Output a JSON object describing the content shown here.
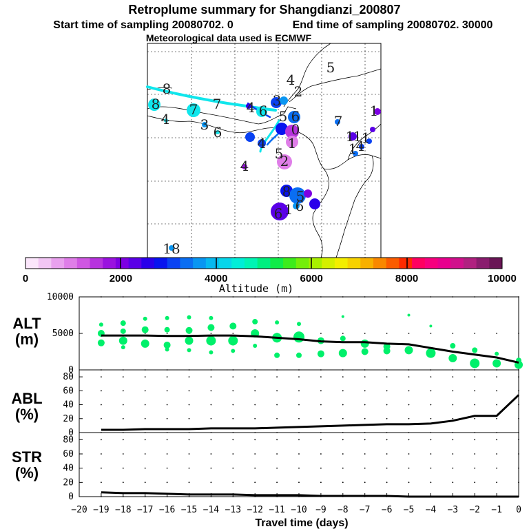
{
  "title": "Retroplume summary for Shangdianzi_200807",
  "subtitle_start": "Start time of sampling 20080702.    0",
  "subtitle_end": "End time of sampling 20080702. 30000",
  "met_line": "Meteorological data used is ECMWF",
  "colorbar": {
    "label": "Altitude (m)",
    "ticks": [
      "0",
      "2000",
      "4000",
      "6000",
      "8000",
      "10000"
    ],
    "colors": [
      "#fbe6fb",
      "#f2c6f4",
      "#e9a1ee",
      "#df7ee8",
      "#cf57e2",
      "#b733de",
      "#9a12df",
      "#7d00e2",
      "#5a00e7",
      "#2a00ea",
      "#0814ef",
      "#0a42f2",
      "#0a6ef2",
      "#0896f2",
      "#06b9f0",
      "#06d6ea",
      "#00eed8",
      "#00f5b4",
      "#00f080",
      "#10ec48",
      "#3cec1c",
      "#74ee0a",
      "#a8f000",
      "#d4f000",
      "#f3ee00",
      "#f7d200",
      "#f8b000",
      "#f98800",
      "#fb5c00",
      "#ff2a00",
      "#ff0060",
      "#f7007e",
      "#e8008e",
      "#d0108c",
      "#b02080",
      "#8a1c6e",
      "#6a1656"
    ]
  },
  "map_labels": [
    {
      "t": "5",
      "c": "#222"
    },
    {
      "t": "4",
      "c": "#222"
    },
    {
      "t": "2",
      "c": "#222"
    },
    {
      "t": "8",
      "c": "#222"
    },
    {
      "t": "8",
      "c": "#222"
    },
    {
      "t": "7",
      "c": "#222"
    },
    {
      "t": "7",
      "c": "#222"
    },
    {
      "t": "4",
      "c": "#222"
    },
    {
      "t": "3",
      "c": "#222"
    },
    {
      "t": "6",
      "c": "#222"
    },
    {
      "t": "4",
      "c": "#222"
    },
    {
      "t": "6",
      "c": "#222"
    },
    {
      "t": "3",
      "c": "#222"
    },
    {
      "t": "5",
      "c": "#222"
    },
    {
      "t": "6",
      "c": "#222"
    },
    {
      "t": "0",
      "c": "#222"
    },
    {
      "t": "1",
      "c": "#222"
    },
    {
      "t": "2",
      "c": "#222"
    },
    {
      "t": "4",
      "c": "#222"
    },
    {
      "t": "5",
      "c": "#222"
    },
    {
      "t": "1",
      "c": "#222"
    },
    {
      "t": "1",
      "c": "#222"
    },
    {
      "t": "7",
      "c": "#222"
    },
    {
      "t": "1",
      "c": "#222"
    },
    {
      "t": "1",
      "c": "#222"
    },
    {
      "t": "1",
      "c": "#222"
    },
    {
      "t": "4",
      "c": "#222"
    },
    {
      "t": "8",
      "c": "#222"
    },
    {
      "t": "5",
      "c": "#222"
    },
    {
      "t": "6",
      "c": "#222"
    },
    {
      "t": "1",
      "c": "#222"
    },
    {
      "t": "6",
      "c": "#222"
    },
    {
      "t": "4",
      "c": "#222"
    },
    {
      "t": "18",
      "c": "#222"
    }
  ],
  "panels": {
    "alt": {
      "label1": "ALT",
      "label2": "(m)"
    },
    "abl": {
      "label1": "ABL",
      "label2": "(%)"
    },
    "str": {
      "label1": "STR",
      "label2": "(%)"
    }
  },
  "xaxis_label": "Travel time (days)",
  "chart_data": [
    {
      "type": "line",
      "name": "ALT",
      "x": [
        -19,
        -18,
        -17,
        -16,
        -15,
        -14,
        -13,
        -12,
        -11,
        -10,
        -9,
        -8,
        -7,
        -6,
        -5,
        -4,
        -3,
        -2,
        -1,
        0
      ],
      "values": [
        4700,
        4700,
        4700,
        4650,
        4650,
        4700,
        4700,
        4600,
        4400,
        4200,
        3900,
        3800,
        3800,
        3600,
        3500,
        3000,
        2500,
        2100,
        1700,
        1000
      ],
      "ylim": [
        0,
        10000
      ],
      "yticks": [
        "0",
        "5000",
        "10000"
      ],
      "scatter": [
        {
          "x": -19,
          "y": 6200,
          "r": 3
        },
        {
          "x": -19,
          "y": 5000,
          "r": 5
        },
        {
          "x": -19,
          "y": 3700,
          "r": 5
        },
        {
          "x": -18,
          "y": 6400,
          "r": 4
        },
        {
          "x": -18,
          "y": 5300,
          "r": 4
        },
        {
          "x": -18,
          "y": 4000,
          "r": 6
        },
        {
          "x": -18,
          "y": 3100,
          "r": 3
        },
        {
          "x": -17,
          "y": 7000,
          "r": 3
        },
        {
          "x": -17,
          "y": 5500,
          "r": 5
        },
        {
          "x": -17,
          "y": 3600,
          "r": 6
        },
        {
          "x": -16,
          "y": 7100,
          "r": 3
        },
        {
          "x": -16,
          "y": 5500,
          "r": 4
        },
        {
          "x": -16,
          "y": 3400,
          "r": 5
        },
        {
          "x": -16,
          "y": 2800,
          "r": 3
        },
        {
          "x": -15,
          "y": 7200,
          "r": 3
        },
        {
          "x": -15,
          "y": 5400,
          "r": 5
        },
        {
          "x": -15,
          "y": 4000,
          "r": 6
        },
        {
          "x": -15,
          "y": 2700,
          "r": 3
        },
        {
          "x": -14,
          "y": 7100,
          "r": 3
        },
        {
          "x": -14,
          "y": 5800,
          "r": 5
        },
        {
          "x": -14,
          "y": 4000,
          "r": 7
        },
        {
          "x": -14,
          "y": 2400,
          "r": 3
        },
        {
          "x": -13,
          "y": 6000,
          "r": 5
        },
        {
          "x": -13,
          "y": 4000,
          "r": 7
        },
        {
          "x": -13,
          "y": 2600,
          "r": 3
        },
        {
          "x": -12,
          "y": 6600,
          "r": 4
        },
        {
          "x": -12,
          "y": 5000,
          "r": 6
        },
        {
          "x": -12,
          "y": 3300,
          "r": 3
        },
        {
          "x": -11,
          "y": 6500,
          "r": 3
        },
        {
          "x": -11,
          "y": 4400,
          "r": 7
        },
        {
          "x": -11,
          "y": 2000,
          "r": 4
        },
        {
          "x": -10,
          "y": 6300,
          "r": 3
        },
        {
          "x": -10,
          "y": 4500,
          "r": 8
        },
        {
          "x": -10,
          "y": 2000,
          "r": 4
        },
        {
          "x": -9,
          "y": 4000,
          "r": 5
        },
        {
          "x": -9,
          "y": 2200,
          "r": 5
        },
        {
          "x": -8,
          "y": 7300,
          "r": 2
        },
        {
          "x": -8,
          "y": 4300,
          "r": 4
        },
        {
          "x": -8,
          "y": 2300,
          "r": 6
        },
        {
          "x": -7,
          "y": 3600,
          "r": 6
        },
        {
          "x": -7,
          "y": 2500,
          "r": 5
        },
        {
          "x": -6,
          "y": 3200,
          "r": 5
        },
        {
          "x": -6,
          "y": 2600,
          "r": 5
        },
        {
          "x": -5,
          "y": 7500,
          "r": 2
        },
        {
          "x": -5,
          "y": 2700,
          "r": 6
        },
        {
          "x": -4,
          "y": 6000,
          "r": 2
        },
        {
          "x": -4,
          "y": 2300,
          "r": 7
        },
        {
          "x": -3,
          "y": 3300,
          "r": 4
        },
        {
          "x": -3,
          "y": 1600,
          "r": 6
        },
        {
          "x": -2,
          "y": 2700,
          "r": 4
        },
        {
          "x": -2,
          "y": 900,
          "r": 7
        },
        {
          "x": -1,
          "y": 2200,
          "r": 3
        },
        {
          "x": -1,
          "y": 900,
          "r": 6
        },
        {
          "x": 0,
          "y": 1300,
          "r": 4
        },
        {
          "x": 0,
          "y": 700,
          "r": 6
        }
      ]
    },
    {
      "type": "line",
      "name": "ABL",
      "x": [
        -19,
        -18,
        -17,
        -16,
        -15,
        -14,
        -13,
        -12,
        -11,
        -10,
        -9,
        -8,
        -7,
        -6,
        -5,
        -4,
        -3,
        -2,
        -1,
        0
      ],
      "values": [
        4,
        4,
        5,
        5,
        5,
        6,
        6,
        6,
        7,
        8,
        9,
        10,
        11,
        12,
        12,
        13,
        17,
        24,
        24,
        54
      ],
      "ylim": [
        0,
        90
      ],
      "yticks": [
        "0",
        "20",
        "40",
        "60",
        "80"
      ]
    },
    {
      "type": "line",
      "name": "STR",
      "x": [
        -19,
        -18,
        -17,
        -16,
        -15,
        -14,
        -13,
        -12,
        -11,
        -10,
        -9,
        -8,
        -7,
        -6,
        -5,
        -4,
        -3,
        -2,
        -1,
        0
      ],
      "values": [
        6,
        5,
        5,
        4,
        3,
        3,
        3,
        2,
        2,
        2,
        1,
        1,
        1,
        1,
        0,
        0,
        0,
        0,
        0,
        0
      ],
      "ylim": [
        0,
        90
      ],
      "yticks": [
        "0",
        "20",
        "40",
        "60",
        "80"
      ]
    }
  ],
  "x_ticks": [
    "−20",
    "−19",
    "−18",
    "−17",
    "−16",
    "−15",
    "−14",
    "−13",
    "−12",
    "−11",
    "−10",
    "−9",
    "−8",
    "−7",
    "−6",
    "−5",
    "−4",
    "−3",
    "−2",
    "−1",
    "0"
  ]
}
